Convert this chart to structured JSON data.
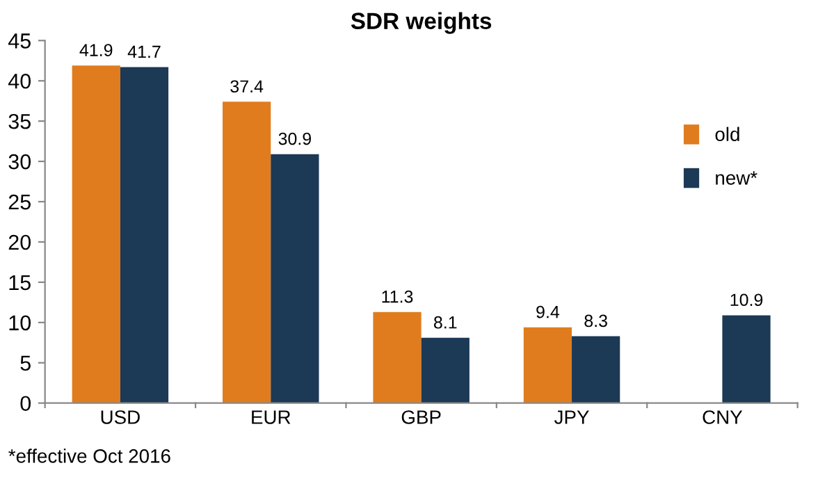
{
  "chart_data": {
    "type": "bar",
    "title": "SDR weights",
    "categories": [
      "USD",
      "EUR",
      "GBP",
      "JPY",
      "CNY"
    ],
    "series": [
      {
        "name": "old",
        "color": "#e07c1e",
        "values": [
          41.9,
          37.4,
          11.3,
          9.4,
          null
        ]
      },
      {
        "name": "new*",
        "color": "#1c3955",
        "values": [
          41.7,
          30.9,
          8.1,
          8.3,
          10.9
        ]
      }
    ],
    "ylim": [
      0,
      45
    ],
    "yticks": [
      0,
      5,
      10,
      15,
      20,
      25,
      30,
      35,
      40,
      45
    ],
    "grid": false,
    "legend": "right",
    "data_labels": true,
    "annotations": [
      "*effective Oct 2016"
    ]
  }
}
